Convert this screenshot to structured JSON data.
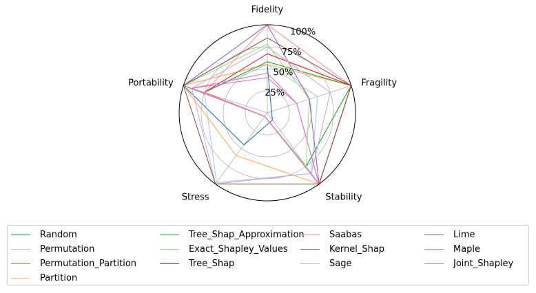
{
  "chart_data": {
    "type": "radar",
    "axes": [
      "Fidelity",
      "Fragility",
      "Stability",
      "Stress",
      "Portability"
    ],
    "radial_ticks": [
      "25%",
      "50%",
      "75%",
      "100%"
    ],
    "tick_values": [
      25,
      50,
      75,
      100
    ],
    "rmax": 100,
    "legend_placement": "bottom",
    "series": [
      {
        "name": "Random",
        "color": "#1f77b4",
        "values": [
          55,
          5,
          10,
          45,
          100
        ]
      },
      {
        "name": "Permutation",
        "color": "#aec7e8",
        "values": [
          55,
          60,
          85,
          98,
          75
        ]
      },
      {
        "name": "Permutation_Partition",
        "color": "#ff7f0e",
        "values": [
          55,
          100,
          100,
          60,
          100
        ]
      },
      {
        "name": "Partition",
        "color": "#ffbb78",
        "values": [
          55,
          100,
          100,
          60,
          100
        ]
      },
      {
        "name": "Tree_Shap_Approximation",
        "color": "#2ca02c",
        "values": [
          58,
          100,
          75,
          5,
          75
        ]
      },
      {
        "name": "Exact_Shapley_Values",
        "color": "#98df8a",
        "values": [
          78,
          50,
          75,
          5,
          100
        ]
      },
      {
        "name": "Tree_Shap",
        "color": "#d62728",
        "values": [
          67,
          100,
          100,
          5,
          75
        ]
      },
      {
        "name": "Saabas",
        "color": "#ff9896",
        "values": [
          100,
          100,
          100,
          5,
          75
        ]
      },
      {
        "name": "Kernel_Shap",
        "color": "#9467bd",
        "values": [
          100,
          50,
          100,
          5,
          100
        ]
      },
      {
        "name": "Sage",
        "color": "#c5b0d5",
        "values": [
          75,
          75,
          85,
          100,
          90
        ]
      },
      {
        "name": "Lime",
        "color": "#8c564b",
        "values": [
          85,
          100,
          100,
          100,
          100
        ]
      },
      {
        "name": "Maple",
        "color": "#e377c2",
        "values": [
          45,
          35,
          100,
          5,
          90
        ]
      },
      {
        "name": "Joint_Shapley",
        "color": "#e377c2",
        "values": [
          40,
          35,
          100,
          5,
          90
        ]
      }
    ]
  }
}
